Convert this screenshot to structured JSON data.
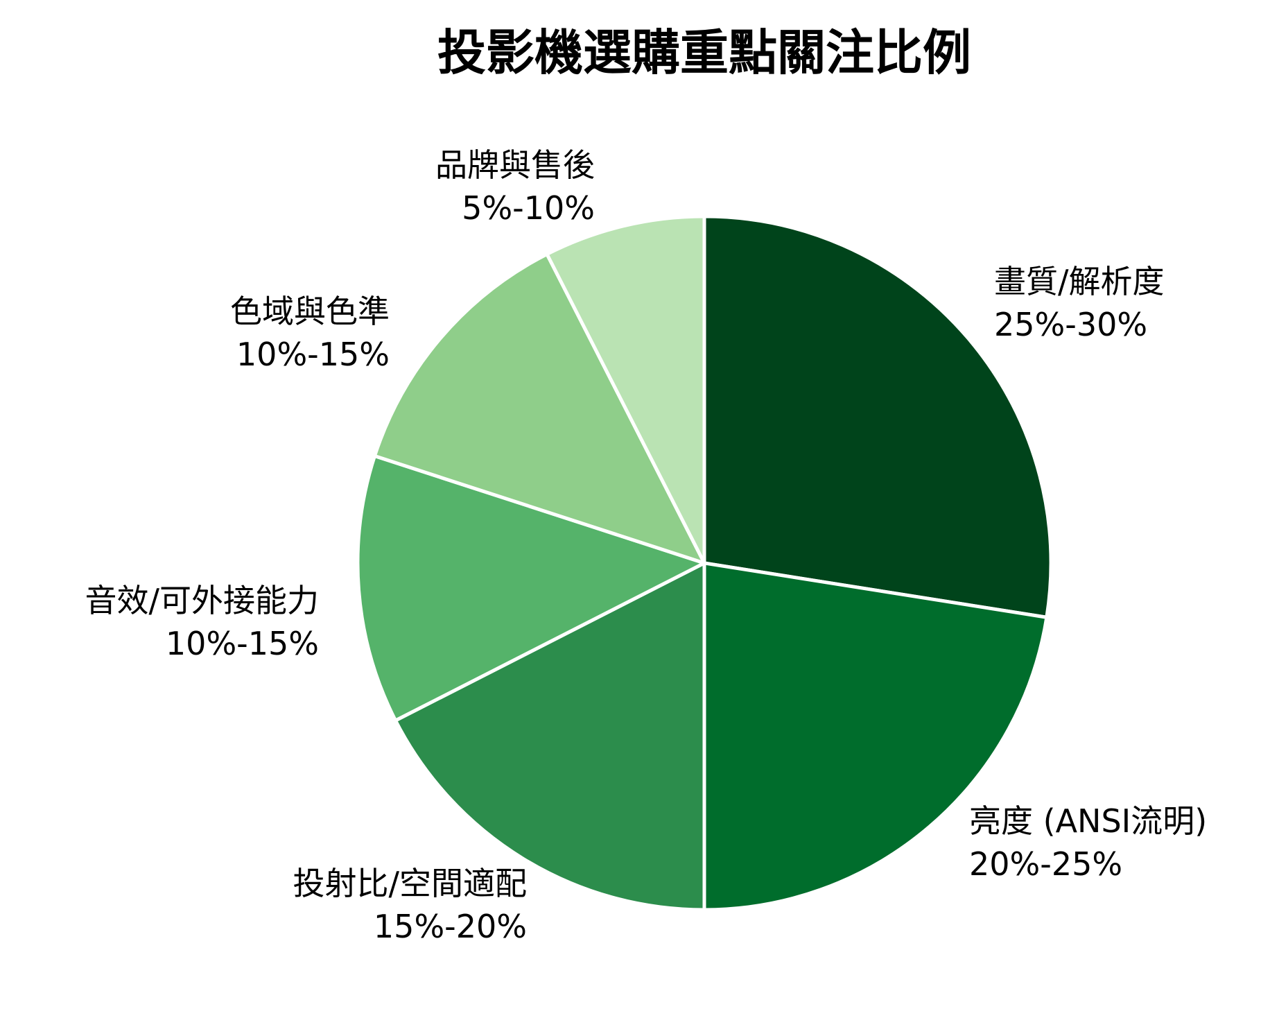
{
  "chart_data": {
    "type": "pie",
    "title": "投影機選購重點關注比例",
    "start": "12 o'clock, clockwise",
    "slices": [
      {
        "label": "畫質/解析度",
        "value_text": "25%-30%",
        "value": 27.5,
        "color": "#00441b"
      },
      {
        "label": "亮度 (ANSI流明)",
        "value_text": "20%-25%",
        "value": 22.5,
        "color": "#006d2c"
      },
      {
        "label": "投射比/空間適配",
        "value_text": "15%-20%",
        "value": 17.5,
        "color": "#2c8d4c"
      },
      {
        "label": "音效/可外接能力",
        "value_text": "10%-15%",
        "value": 12.5,
        "color": "#55b36a"
      },
      {
        "label": "色域與色準",
        "value_text": "10%-15%",
        "value": 12.5,
        "color": "#8fce8a"
      },
      {
        "label": "品牌與售後",
        "value_text": "5%-10%",
        "value": 7.5,
        "color": "#bae3b3"
      }
    ]
  }
}
